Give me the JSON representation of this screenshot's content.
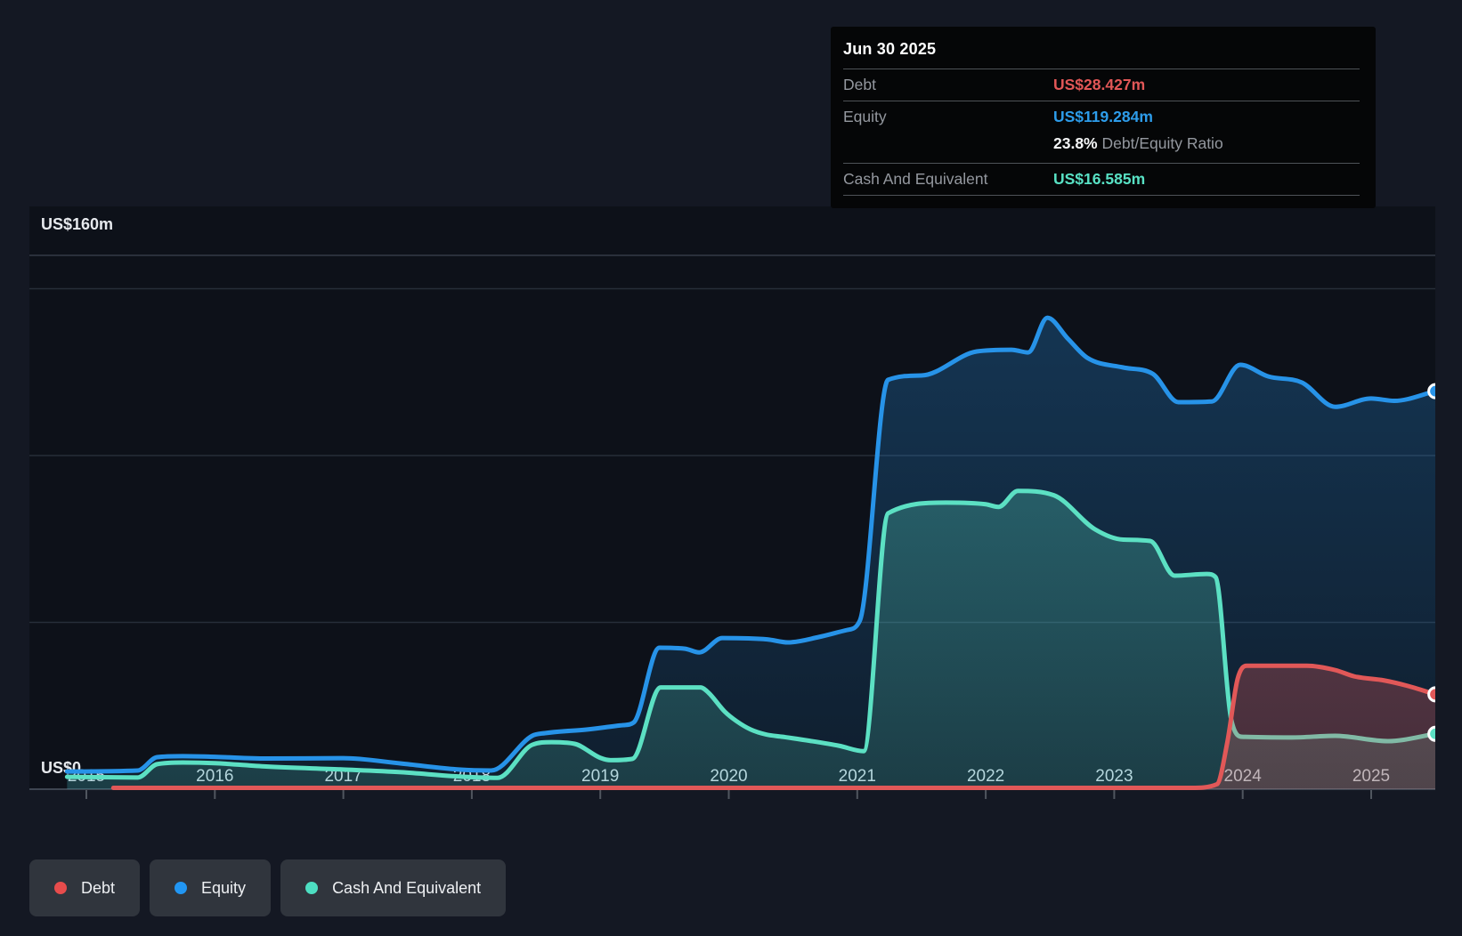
{
  "colors": {
    "page_bg": "#141823",
    "plot_bg": "#0d1119",
    "grid": "#272e39",
    "grid_top": "#343b47",
    "axis": "#3e4551",
    "tick": "#50565f",
    "axis_text": "#d9dce1",
    "y_label_text": "#e6e9ed"
  },
  "tooltip": {
    "date": "Jun 30 2025",
    "debt": {
      "label": "Debt",
      "value": "US$28.427m",
      "color": "#e25757"
    },
    "equity": {
      "label": "Equity",
      "value": "US$119.284m",
      "color": "#2d9cea"
    },
    "ratio": {
      "value": "23.8%",
      "label": "Debt/Equity Ratio"
    },
    "cash": {
      "label": "Cash And Equivalent",
      "value": "US$16.585m",
      "color": "#58e1c4"
    }
  },
  "legend": [
    {
      "label": "Debt",
      "color": "#e74c4c"
    },
    {
      "label": "Equity",
      "color": "#2196f3"
    },
    {
      "label": "Cash And Equivalent",
      "color": "#4ddec2"
    }
  ],
  "chart_data": {
    "type": "area",
    "unit": "US$ millions",
    "end_date": "Jun 30 2025",
    "x_ticks": [
      2015,
      2016,
      2017,
      2018,
      2019,
      2020,
      2021,
      2022,
      2023,
      2024,
      2025
    ],
    "x_range": [
      2014.85,
      2025.5
    ],
    "y_axis": {
      "max_label": "US$160m",
      "zero_label": "US$0",
      "max_value": 160,
      "gridline_values": [
        160,
        150,
        100,
        50
      ]
    },
    "series": [
      {
        "name": "Equity",
        "color": "#2793e8",
        "end_value": 119.284,
        "points": [
          [
            2014.85,
            5.3
          ],
          [
            2015.4,
            5.6
          ],
          [
            2015.55,
            9.6
          ],
          [
            2015.75,
            9.9
          ],
          [
            2016,
            9.7
          ],
          [
            2016.4,
            9.2
          ],
          [
            2017,
            9.3
          ],
          [
            2017.45,
            7.7
          ],
          [
            2017.9,
            5.9
          ],
          [
            2018.15,
            5.6
          ],
          [
            2018.47,
            16
          ],
          [
            2018.57,
            16.8
          ],
          [
            2018.9,
            17.9
          ],
          [
            2019.18,
            19.2
          ],
          [
            2019.26,
            20
          ],
          [
            2019.46,
            42.4
          ],
          [
            2019.66,
            42.1
          ],
          [
            2019.77,
            41
          ],
          [
            2019.95,
            45.3
          ],
          [
            2020.3,
            44.9
          ],
          [
            2020.46,
            44
          ],
          [
            2020.7,
            45.6
          ],
          [
            2020.92,
            47.7
          ],
          [
            2021.02,
            50.5
          ],
          [
            2021.24,
            122.7
          ],
          [
            2021.5,
            124
          ],
          [
            2021.93,
            131.2
          ],
          [
            2022.2,
            131.7
          ],
          [
            2022.33,
            130.9
          ],
          [
            2022.48,
            141.3
          ],
          [
            2022.64,
            135
          ],
          [
            2022.79,
            129.3
          ],
          [
            2023.07,
            126.4
          ],
          [
            2023.3,
            124.5
          ],
          [
            2023.5,
            116
          ],
          [
            2023.76,
            116.2
          ],
          [
            2023.98,
            127.2
          ],
          [
            2024.2,
            123.7
          ],
          [
            2024.46,
            121.9
          ],
          [
            2024.72,
            114.6
          ],
          [
            2025,
            117.1
          ],
          [
            2025.18,
            116.4
          ],
          [
            2025.5,
            119.284
          ]
        ]
      },
      {
        "name": "Cash And Equivalent",
        "color": "#5ce0c3",
        "end_value": 16.585,
        "points": [
          [
            2014.85,
            3.7
          ],
          [
            2015.4,
            3.5
          ],
          [
            2015.55,
            7.5
          ],
          [
            2015.75,
            8
          ],
          [
            2016,
            7.8
          ],
          [
            2016.4,
            6.8
          ],
          [
            2017,
            5.9
          ],
          [
            2017.45,
            5.1
          ],
          [
            2017.9,
            3.8
          ],
          [
            2018.2,
            3.4
          ],
          [
            2018.47,
            13.3
          ],
          [
            2018.62,
            14.1
          ],
          [
            2018.8,
            13.6
          ],
          [
            2019,
            9.4
          ],
          [
            2019.08,
            8.7
          ],
          [
            2019.25,
            9.1
          ],
          [
            2019.47,
            30.5
          ],
          [
            2019.78,
            30.5
          ],
          [
            2019.84,
            29
          ],
          [
            2019.97,
            23.2
          ],
          [
            2020.06,
            20.4
          ],
          [
            2020.17,
            17.9
          ],
          [
            2020.29,
            16.4
          ],
          [
            2020.42,
            15.7
          ],
          [
            2020.63,
            14.5
          ],
          [
            2020.86,
            13
          ],
          [
            2021.05,
            11.4
          ],
          [
            2021.24,
            82.7
          ],
          [
            2021.69,
            85.9
          ],
          [
            2022,
            85.4
          ],
          [
            2022.1,
            84.6
          ],
          [
            2022.25,
            89.4
          ],
          [
            2022.53,
            88.1
          ],
          [
            2022.85,
            77.9
          ],
          [
            2023.07,
            74.8
          ],
          [
            2023.28,
            74.4
          ],
          [
            2023.47,
            64
          ],
          [
            2023.72,
            64.5
          ],
          [
            2023.79,
            63.5
          ],
          [
            2023.91,
            21
          ],
          [
            2024,
            15.7
          ],
          [
            2024.38,
            15.5
          ],
          [
            2024.72,
            16
          ],
          [
            2025.13,
            14.4
          ],
          [
            2025.5,
            16.585
          ]
        ]
      },
      {
        "name": "Debt",
        "color": "#e15858",
        "end_value": 28.427,
        "points": [
          [
            2015.21,
            0.4
          ],
          [
            2016,
            0.4
          ],
          [
            2017,
            0.4
          ],
          [
            2018,
            0.4
          ],
          [
            2019,
            0.4
          ],
          [
            2020,
            0.4
          ],
          [
            2021,
            0.4
          ],
          [
            2022,
            0.4
          ],
          [
            2023,
            0.4
          ],
          [
            2023.6,
            0.4
          ],
          [
            2023.8,
            1.5
          ],
          [
            2023.88,
            14
          ],
          [
            2023.96,
            33
          ],
          [
            2024.03,
            37
          ],
          [
            2024.5,
            37
          ],
          [
            2024.72,
            35.7
          ],
          [
            2024.87,
            33.8
          ],
          [
            2025.1,
            32.6
          ],
          [
            2025.28,
            31
          ],
          [
            2025.5,
            28.427
          ]
        ]
      }
    ]
  }
}
